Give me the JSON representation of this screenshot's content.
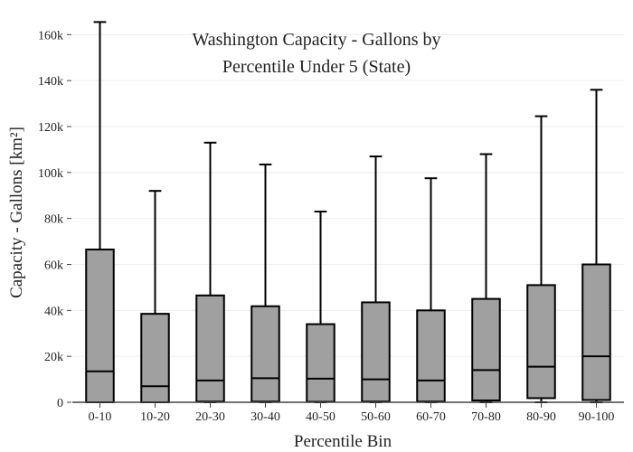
{
  "chart_data": {
    "type": "box",
    "title_lines": [
      "Washington Capacity - Gallons by",
      "Percentile Under 5 (State)"
    ],
    "xlabel": "Percentile Bin",
    "ylabel": "Capacity - Gallons",
    "ylabel_unit": "[km²]",
    "ylim": [
      0,
      168000
    ],
    "yticks": [
      0,
      20000,
      40000,
      60000,
      80000,
      100000,
      120000,
      140000,
      160000
    ],
    "ytick_labels": [
      "0",
      "20k",
      "40k",
      "60k",
      "80k",
      "100k",
      "120k",
      "140k",
      "160k"
    ],
    "grid": true,
    "categories": [
      "0-10",
      "10-20",
      "20-30",
      "30-40",
      "40-50",
      "50-60",
      "60-70",
      "70-80",
      "80-90",
      "90-100"
    ],
    "boxes": [
      {
        "min": 0,
        "q1": 0,
        "median": 13500,
        "q3": 66500,
        "max": 165500
      },
      {
        "min": 0,
        "q1": 0,
        "median": 7000,
        "q3": 38500,
        "max": 92000
      },
      {
        "min": 0,
        "q1": 300,
        "median": 9500,
        "q3": 46500,
        "max": 113000
      },
      {
        "min": 0,
        "q1": 300,
        "median": 10500,
        "q3": 41800,
        "max": 103500
      },
      {
        "min": 0,
        "q1": 200,
        "median": 10300,
        "q3": 34000,
        "max": 83000
      },
      {
        "min": 0,
        "q1": 300,
        "median": 10000,
        "q3": 43500,
        "max": 107000
      },
      {
        "min": 0,
        "q1": 300,
        "median": 9500,
        "q3": 40000,
        "max": 97500
      },
      {
        "min": 0,
        "q1": 800,
        "median": 14000,
        "q3": 45000,
        "max": 108000
      },
      {
        "min": 0,
        "q1": 1800,
        "median": 15500,
        "q3": 51000,
        "max": 124500
      },
      {
        "min": 0,
        "q1": 1000,
        "median": 20000,
        "q3": 60000,
        "max": 136000
      }
    ],
    "box_fill": "#a0a0a0",
    "line_color": "#000000",
    "grid_color": "#eeeeee"
  }
}
